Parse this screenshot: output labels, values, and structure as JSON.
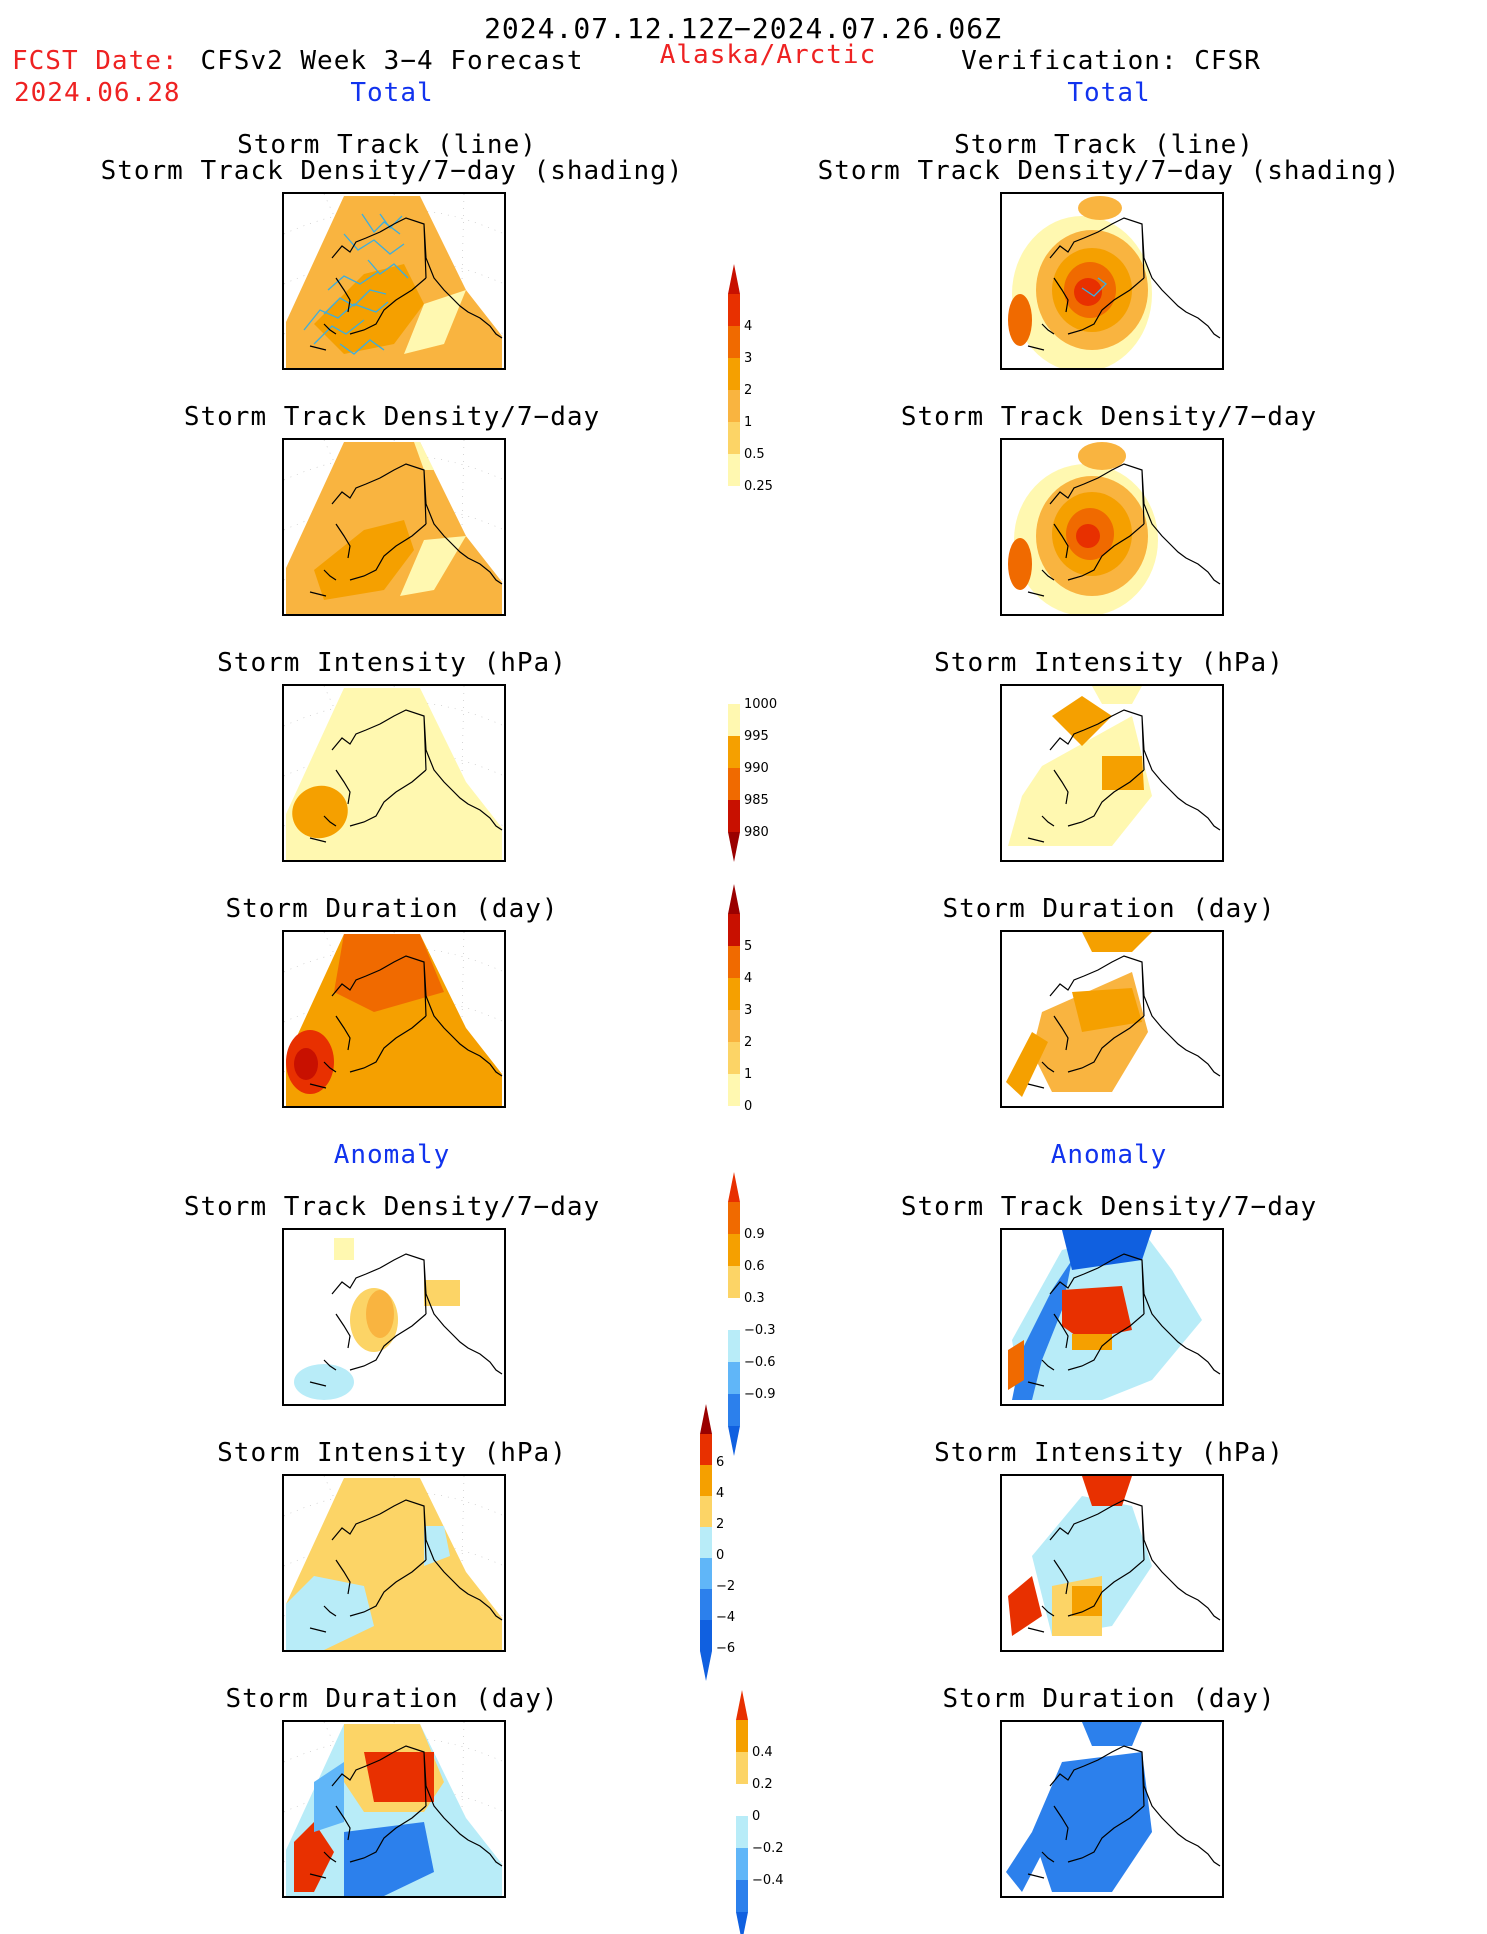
{
  "header": {
    "period": "2024.07.12.12Z−2024.07.26.06Z",
    "fcst_label": "FCST Date:",
    "fcst_date": "2024.06.28",
    "model_title": "CFSv2 Week 3−4 Forecast",
    "region": "Alaska/Arctic",
    "verification": "Verification: CFSR",
    "left_total": "Total",
    "right_total": "Total",
    "left_anomaly": "Anomaly",
    "right_anomaly": "Anomaly"
  },
  "panel_titles": {
    "track_line": "Storm Track (line)",
    "track_shading": "Storm Track Density/7−day (shading)",
    "density": "Storm Track Density/7−day",
    "intensity": "Storm Intensity (hPa)",
    "duration": "Storm Duration (day)"
  },
  "colorbars": {
    "density": [
      "4",
      "3",
      "2",
      "1",
      "0.5",
      "0.25"
    ],
    "intensity": [
      "1000",
      "995",
      "990",
      "985",
      "980"
    ],
    "duration": [
      "5",
      "4",
      "3",
      "2",
      "1",
      "0"
    ],
    "density_anom": [
      "0.9",
      "0.6",
      "0.3",
      "−0.3",
      "−0.6",
      "−0.9"
    ],
    "intensity_anom": [
      "6",
      "4",
      "2",
      "0",
      "−2",
      "−4",
      "−6"
    ],
    "duration_anom": [
      "0.4",
      "0.2",
      "0",
      "−0.2",
      "−0.4"
    ]
  },
  "colors": {
    "light_yellow": "#fff8b0",
    "yellow": "#fcd466",
    "light_orange": "#f9b440",
    "orange": "#f5a000",
    "dark_orange": "#f06a00",
    "red": "#e83000",
    "dark_red": "#c81000",
    "maroon": "#9a0000",
    "light_blue": "#b8ecf8",
    "mid_blue": "#60b6f8",
    "blue": "#2c80ec",
    "dark_blue": "#1060e0"
  }
}
